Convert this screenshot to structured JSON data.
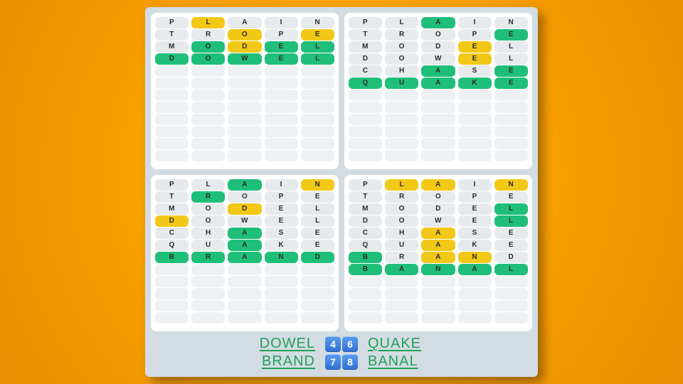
{
  "colors": {
    "gray": "#e7eaed",
    "yellow": "#f2c817",
    "green": "#1fbf79",
    "blank": "#eef1f3"
  },
  "board_rows_total": 12,
  "boards": [
    {
      "rows": [
        {
          "letters": [
            "P",
            "L",
            "A",
            "I",
            "N"
          ],
          "states": [
            "gray",
            "yellow",
            "gray",
            "gray",
            "gray"
          ]
        },
        {
          "letters": [
            "T",
            "R",
            "O",
            "P",
            "E"
          ],
          "states": [
            "gray",
            "gray",
            "yellow",
            "gray",
            "yellow"
          ]
        },
        {
          "letters": [
            "M",
            "O",
            "D",
            "E",
            "L"
          ],
          "states": [
            "gray",
            "green",
            "yellow",
            "green",
            "green"
          ]
        },
        {
          "letters": [
            "D",
            "O",
            "W",
            "E",
            "L"
          ],
          "states": [
            "green",
            "green",
            "green",
            "green",
            "green"
          ]
        }
      ]
    },
    {
      "rows": [
        {
          "letters": [
            "P",
            "L",
            "A",
            "I",
            "N"
          ],
          "states": [
            "gray",
            "gray",
            "green",
            "gray",
            "gray"
          ]
        },
        {
          "letters": [
            "T",
            "R",
            "O",
            "P",
            "E"
          ],
          "states": [
            "gray",
            "gray",
            "gray",
            "gray",
            "green"
          ]
        },
        {
          "letters": [
            "M",
            "O",
            "D",
            "E",
            "L"
          ],
          "states": [
            "gray",
            "gray",
            "gray",
            "yellow",
            "gray"
          ]
        },
        {
          "letters": [
            "D",
            "O",
            "W",
            "E",
            "L"
          ],
          "states": [
            "gray",
            "gray",
            "gray",
            "yellow",
            "gray"
          ]
        },
        {
          "letters": [
            "C",
            "H",
            "A",
            "S",
            "E"
          ],
          "states": [
            "gray",
            "gray",
            "green",
            "gray",
            "green"
          ]
        },
        {
          "letters": [
            "Q",
            "U",
            "A",
            "K",
            "E"
          ],
          "states": [
            "green",
            "green",
            "green",
            "green",
            "green"
          ]
        }
      ]
    },
    {
      "rows": [
        {
          "letters": [
            "P",
            "L",
            "A",
            "I",
            "N"
          ],
          "states": [
            "gray",
            "gray",
            "green",
            "gray",
            "yellow"
          ]
        },
        {
          "letters": [
            "T",
            "R",
            "O",
            "P",
            "E"
          ],
          "states": [
            "gray",
            "green",
            "gray",
            "gray",
            "gray"
          ]
        },
        {
          "letters": [
            "M",
            "O",
            "D",
            "E",
            "L"
          ],
          "states": [
            "gray",
            "gray",
            "yellow",
            "gray",
            "gray"
          ]
        },
        {
          "letters": [
            "D",
            "O",
            "W",
            "E",
            "L"
          ],
          "states": [
            "yellow",
            "gray",
            "gray",
            "gray",
            "gray"
          ]
        },
        {
          "letters": [
            "C",
            "H",
            "A",
            "S",
            "E"
          ],
          "states": [
            "gray",
            "gray",
            "green",
            "gray",
            "gray"
          ]
        },
        {
          "letters": [
            "Q",
            "U",
            "A",
            "K",
            "E"
          ],
          "states": [
            "gray",
            "gray",
            "green",
            "gray",
            "gray"
          ]
        },
        {
          "letters": [
            "B",
            "R",
            "A",
            "N",
            "D"
          ],
          "states": [
            "green",
            "green",
            "green",
            "green",
            "green"
          ]
        }
      ]
    },
    {
      "rows": [
        {
          "letters": [
            "P",
            "L",
            "A",
            "I",
            "N"
          ],
          "states": [
            "gray",
            "yellow",
            "yellow",
            "gray",
            "yellow"
          ]
        },
        {
          "letters": [
            "T",
            "R",
            "O",
            "P",
            "E"
          ],
          "states": [
            "gray",
            "gray",
            "gray",
            "gray",
            "gray"
          ]
        },
        {
          "letters": [
            "M",
            "O",
            "D",
            "E",
            "L"
          ],
          "states": [
            "gray",
            "gray",
            "gray",
            "gray",
            "green"
          ]
        },
        {
          "letters": [
            "D",
            "O",
            "W",
            "E",
            "L"
          ],
          "states": [
            "gray",
            "gray",
            "gray",
            "gray",
            "green"
          ]
        },
        {
          "letters": [
            "C",
            "H",
            "A",
            "S",
            "E"
          ],
          "states": [
            "gray",
            "gray",
            "yellow",
            "gray",
            "gray"
          ]
        },
        {
          "letters": [
            "Q",
            "U",
            "A",
            "K",
            "E"
          ],
          "states": [
            "gray",
            "gray",
            "yellow",
            "gray",
            "gray"
          ]
        },
        {
          "letters": [
            "B",
            "R",
            "A",
            "N",
            "D"
          ],
          "states": [
            "green",
            "gray",
            "yellow",
            "yellow",
            "gray"
          ]
        },
        {
          "letters": [
            "B",
            "A",
            "N",
            "A",
            "L"
          ],
          "states": [
            "green",
            "green",
            "green",
            "green",
            "green"
          ]
        }
      ]
    }
  ],
  "answers": [
    {
      "left": "DOWEL",
      "nums": [
        "4",
        "6"
      ],
      "right": "QUAKE"
    },
    {
      "left": "BRAND",
      "nums": [
        "7",
        "8"
      ],
      "right": "BANAL"
    }
  ]
}
